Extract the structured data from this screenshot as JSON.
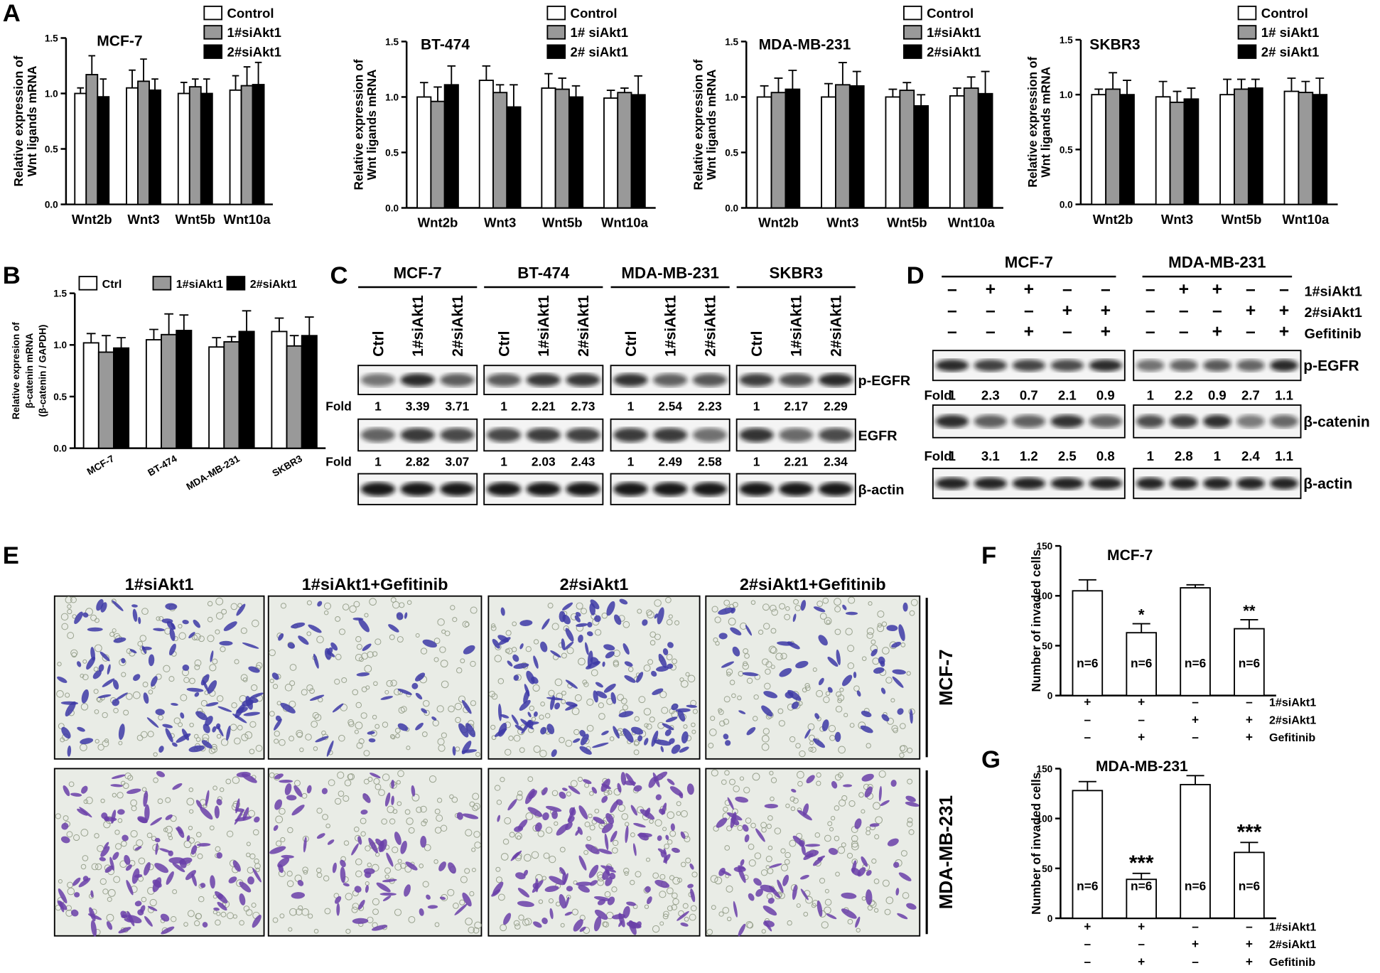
{
  "panel_letters": [
    "A",
    "B",
    "C",
    "D",
    "E",
    "F",
    "G"
  ],
  "chart_data": [
    {
      "type": "bar",
      "title": "MCF-7",
      "ylabel": [
        "Relative expression of",
        "Wnt ligands mRNA"
      ],
      "categories": [
        "Wnt2b",
        "Wnt3",
        "Wnt5b",
        "Wnt10a"
      ],
      "series": [
        {
          "name": "Control",
          "color": "#ffffff",
          "values": [
            1.0,
            1.05,
            1.0,
            1.03
          ],
          "errors": [
            0.05,
            0.16,
            0.1,
            0.13
          ]
        },
        {
          "name": "1#siAkt1",
          "color": "#999999",
          "values": [
            1.17,
            1.11,
            1.06,
            1.07
          ],
          "errors": [
            0.17,
            0.2,
            0.07,
            0.17
          ]
        },
        {
          "name": "2#siAkt1",
          "color": "#000000",
          "values": [
            0.97,
            1.03,
            1.0,
            1.08
          ],
          "errors": [
            0.16,
            0.1,
            0.13,
            0.2
          ]
        }
      ],
      "ylim": [
        0,
        1.5
      ],
      "yticks": [
        {
          "value": 0,
          "label": "0.0"
        },
        0.5,
        {
          "value": 1,
          "label": "1.0"
        },
        1.5
      ]
    },
    {
      "type": "bar",
      "title": "BT-474",
      "ylabel": [
        "Relative expression of",
        "Wnt ligands mRNA"
      ],
      "categories": [
        "Wnt2b",
        "Wnt3",
        "Wnt5b",
        "Wnt10a"
      ],
      "series": [
        {
          "name": "Control",
          "color": "#ffffff",
          "values": [
            1.0,
            1.15,
            1.08,
            0.99
          ],
          "errors": [
            0.13,
            0.13,
            0.13,
            0.07
          ]
        },
        {
          "name": "1# siAkt1",
          "color": "#999999",
          "values": [
            0.96,
            1.04,
            1.07,
            1.04
          ],
          "errors": [
            0.13,
            0.07,
            0.1,
            0.04
          ]
        },
        {
          "name": "2# siAkt1",
          "color": "#000000",
          "values": [
            1.11,
            0.91,
            1.0,
            1.02
          ],
          "errors": [
            0.17,
            0.2,
            0.1,
            0.17
          ]
        }
      ],
      "ylim": [
        0,
        1.5
      ],
      "yticks": [
        {
          "value": 0,
          "label": "0.0"
        },
        0.5,
        {
          "value": 1,
          "label": "1.0"
        },
        1.5
      ]
    },
    {
      "type": "bar",
      "title": "MDA-MB-231",
      "ylabel": [
        "Relative expression of",
        "Wnt ligands mRNA"
      ],
      "categories": [
        "Wnt2b",
        "Wnt3",
        "Wnt5b",
        "Wnt10a"
      ],
      "series": [
        {
          "name": "Control",
          "color": "#ffffff",
          "values": [
            1.0,
            1.0,
            1.0,
            1.01
          ],
          "errors": [
            0.1,
            0.12,
            0.07,
            0.07
          ]
        },
        {
          "name": "1#siAkt1",
          "color": "#999999",
          "values": [
            1.04,
            1.11,
            1.06,
            1.08
          ],
          "errors": [
            0.13,
            0.2,
            0.07,
            0.1
          ]
        },
        {
          "name": "2#siAkt1",
          "color": "#000000",
          "values": [
            1.07,
            1.1,
            0.92,
            1.03
          ],
          "errors": [
            0.17,
            0.13,
            0.1,
            0.2
          ]
        }
      ],
      "ylim": [
        0,
        1.5
      ],
      "yticks": [
        {
          "value": 0,
          "label": "0.0"
        },
        0.5,
        {
          "value": 1,
          "label": "1.0"
        },
        1.5
      ]
    },
    {
      "type": "bar",
      "title": "SKBR3",
      "ylabel": [
        "Relative expression of",
        "Wnt ligands mRNA"
      ],
      "categories": [
        "Wnt2b",
        "Wnt3",
        "Wnt5b",
        "Wnt10a"
      ],
      "series": [
        {
          "name": "Control",
          "color": "#ffffff",
          "values": [
            1.0,
            0.98,
            1.0,
            1.03
          ],
          "errors": [
            0.05,
            0.14,
            0.14,
            0.12
          ]
        },
        {
          "name": "1# siAkt1",
          "color": "#999999",
          "values": [
            1.05,
            0.93,
            1.05,
            1.02
          ],
          "errors": [
            0.15,
            0.1,
            0.09,
            0.1
          ]
        },
        {
          "name": "2# siAkt1",
          "color": "#000000",
          "values": [
            1.0,
            0.96,
            1.06,
            1.0
          ],
          "errors": [
            0.13,
            0.1,
            0.08,
            0.15
          ]
        }
      ],
      "ylim": [
        0,
        1.5
      ],
      "yticks": [
        {
          "value": 0,
          "label": "0.0"
        },
        0.5,
        {
          "value": 1,
          "label": "1.0"
        },
        1.5
      ]
    },
    {
      "type": "bar",
      "ylabel": [
        "Relative expresion of",
        "β-catenin mRNA",
        "(β-catenin / GAPDH)"
      ],
      "categories": [
        "MCF-7",
        "BT-474",
        "MDA-MB-231",
        "SKBR3"
      ],
      "series": [
        {
          "name": "Ctrl",
          "color": "#ffffff",
          "values": [
            1.02,
            1.05,
            0.98,
            1.13
          ],
          "errors": [
            0.09,
            0.1,
            0.09,
            0.13
          ]
        },
        {
          "name": "1#siAkt1",
          "color": "#999999",
          "values": [
            0.93,
            1.1,
            1.03,
            0.99
          ],
          "errors": [
            0.16,
            0.2,
            0.05,
            0.1
          ]
        },
        {
          "name": "2#siAkt1",
          "color": "#000000",
          "values": [
            0.97,
            1.14,
            1.13,
            1.09
          ],
          "errors": [
            0.1,
            0.15,
            0.2,
            0.18
          ]
        }
      ],
      "ylim": [
        0,
        1.5
      ],
      "yticks": [
        {
          "value": 0,
          "label": "0.0"
        },
        0.5,
        {
          "value": 1,
          "label": "1.0"
        },
        1.5
      ]
    },
    {
      "type": "bar",
      "title": "MCF-7",
      "ylabel": [
        "Number of invaded cells"
      ],
      "categories": [
        null,
        null,
        null,
        null
      ],
      "series": [
        {
          "color": "#ffffff",
          "values": [
            105,
            63,
            108,
            67
          ],
          "errors": [
            11,
            9,
            3,
            9
          ]
        }
      ],
      "annotations": [
        null,
        "*",
        null,
        "**"
      ],
      "n_labels": [
        "n=6",
        "n=6",
        "n=6",
        "n=6"
      ],
      "conditions": [
        {
          "label": "1#siAkt1",
          "signs": [
            "+",
            "+",
            "–",
            "–"
          ]
        },
        {
          "label": "2#siAkt1",
          "signs": [
            "–",
            "–",
            "+",
            "+"
          ]
        },
        {
          "label": "Gefitinib",
          "signs": [
            "–",
            "+",
            "–",
            "+"
          ]
        }
      ],
      "ylim": [
        0,
        150
      ],
      "yticks": [
        0,
        50,
        100,
        150
      ]
    },
    {
      "type": "bar",
      "title": "MDA-MB-231",
      "ylabel": [
        "Number of invaded cells"
      ],
      "categories": [
        null,
        null,
        null,
        null
      ],
      "series": [
        {
          "color": "#ffffff",
          "values": [
            128,
            39,
            134,
            66
          ],
          "errors": [
            9,
            6,
            9,
            10
          ]
        }
      ],
      "annotations": [
        null,
        "***",
        null,
        "***"
      ],
      "n_labels": [
        "n=6",
        "n=6",
        "n=6",
        "n=6"
      ],
      "conditions": [
        {
          "label": "1#siAkt1",
          "signs": [
            "+",
            "+",
            "–",
            "–"
          ]
        },
        {
          "label": "2#siAkt1",
          "signs": [
            "–",
            "–",
            "+",
            "+"
          ]
        },
        {
          "label": "Gefitinib",
          "signs": [
            "–",
            "+",
            "–",
            "+"
          ]
        }
      ],
      "ylim": [
        0,
        150
      ],
      "yticks": [
        0,
        50,
        100,
        150
      ]
    }
  ],
  "blot_c": {
    "fold_label": "Fold",
    "row_labels": [
      "p-EGFR",
      "EGFR",
      "β-actin"
    ],
    "groups": [
      {
        "name": "MCF-7",
        "lanes": [
          "Ctrl",
          "1#siAkt1",
          "2#siAkt1"
        ],
        "folds": [
          [
            1,
            3.39,
            3.71
          ],
          [
            1,
            2.82,
            3.07
          ]
        ]
      },
      {
        "name": "BT-474",
        "lanes": [
          "Ctrl",
          "1#siAkt1",
          "2#siAkt1"
        ],
        "folds": [
          [
            1,
            2.21,
            2.73
          ],
          [
            1,
            2.03,
            2.43
          ]
        ]
      },
      {
        "name": "MDA-MB-231",
        "lanes": [
          "Ctrl",
          "1#siAkt1",
          "2#siAkt1"
        ],
        "folds": [
          [
            1,
            2.54,
            2.23
          ],
          [
            1,
            2.49,
            2.58
          ]
        ]
      },
      {
        "name": "SKBR3",
        "lanes": [
          "Ctrl",
          "1#siAkt1",
          "2#siAkt1"
        ],
        "folds": [
          [
            1,
            2.17,
            2.29
          ],
          [
            1,
            2.21,
            2.34
          ]
        ]
      }
    ]
  },
  "blot_d": {
    "fold_label": "Fold",
    "condition_labels": [
      "1#siAkt1",
      "2#siAkt1",
      "Gefitinib"
    ],
    "row_labels": [
      "p-EGFR",
      "β-catenin",
      "β-actin"
    ],
    "groups": [
      {
        "name": "MCF-7",
        "signs": [
          [
            "–",
            "+",
            "+",
            "–",
            "–"
          ],
          [
            "–",
            "–",
            "–",
            "+",
            "+"
          ],
          [
            "–",
            "–",
            "+",
            "–",
            "+"
          ]
        ],
        "folds": [
          [
            1,
            2.3,
            0.7,
            2.1,
            0.9
          ],
          [
            1,
            3.1,
            1.2,
            2.5,
            0.8
          ]
        ]
      },
      {
        "name": "MDA-MB-231",
        "signs": [
          [
            "–",
            "+",
            "+",
            "–",
            "–"
          ],
          [
            "–",
            "–",
            "–",
            "+",
            "+"
          ],
          [
            "–",
            "–",
            "+",
            "–",
            "+"
          ]
        ],
        "folds": [
          [
            1,
            2.2,
            0.9,
            2.7,
            1.1
          ],
          [
            1,
            2.8,
            1,
            2.4,
            1.1
          ]
        ]
      }
    ]
  },
  "invasion_e": {
    "columns": [
      "1#siAkt1",
      "1#siAkt1+Gefitinib",
      "2#siAkt1",
      "2#siAkt1+Gefitinib"
    ],
    "rows": [
      "MCF-7",
      "MDA-MB-231"
    ]
  }
}
